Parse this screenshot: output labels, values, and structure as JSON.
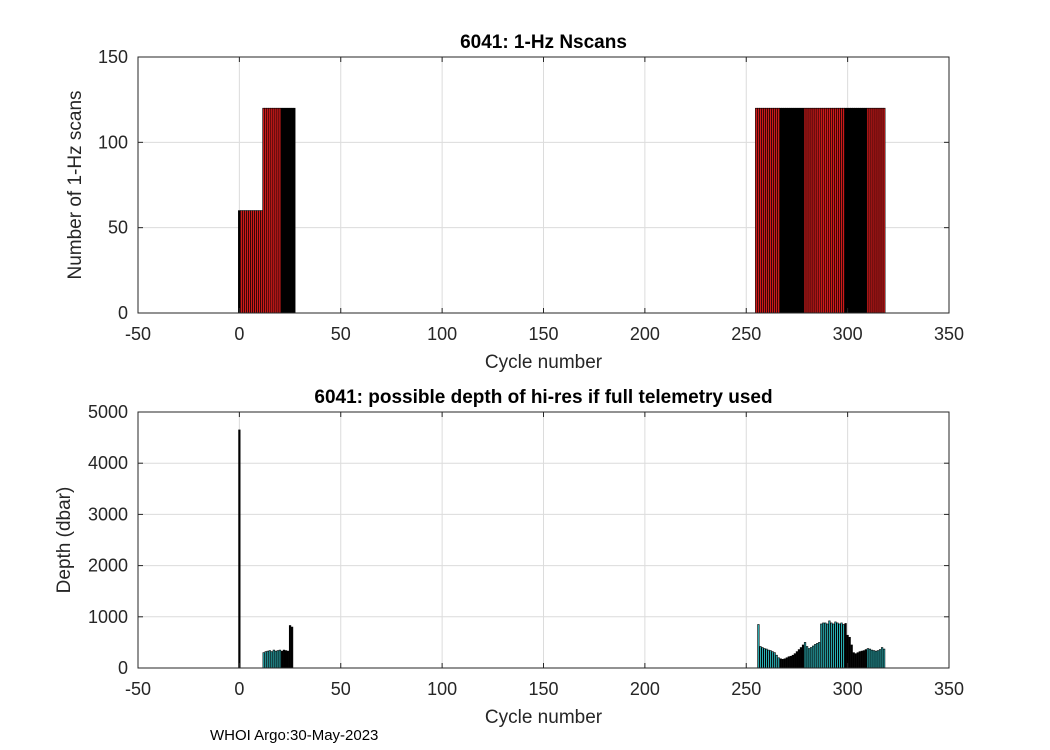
{
  "chart_data": [
    {
      "id": "nscans",
      "type": "bar",
      "title": "6041: 1-Hz Nscans",
      "xlabel": "Cycle number",
      "ylabel": "Number of 1-Hz scans",
      "xlim": [
        -50,
        350
      ],
      "ylim": [
        0,
        150
      ],
      "xticks": [
        -50,
        0,
        50,
        100,
        150,
        200,
        250,
        300,
        350
      ],
      "yticks": [
        0,
        50,
        100,
        150
      ],
      "grid": true,
      "bar_width": 1.0,
      "colors": {
        "fill": "#cc1a1a",
        "edge": "#000000"
      },
      "segments": [
        {
          "from": 0,
          "to": 11,
          "value": 60
        },
        {
          "from": 12,
          "to": 27,
          "value": 120
        },
        {
          "from": 255,
          "to": 318,
          "value": 120
        }
      ],
      "solid_ranges": [
        [
          0,
          0
        ],
        [
          21,
          27
        ],
        [
          267,
          278
        ],
        [
          299,
          309
        ]
      ]
    },
    {
      "id": "depth",
      "type": "bar",
      "title": "6041: possible depth of hi-res if full telemetry used",
      "xlabel": "Cycle number",
      "ylabel": "Depth (dbar)",
      "xlim": [
        -50,
        350
      ],
      "ylim": [
        0,
        5000
      ],
      "xticks": [
        -50,
        0,
        50,
        100,
        150,
        200,
        250,
        300,
        350
      ],
      "yticks": [
        0,
        1000,
        2000,
        3000,
        4000,
        5000
      ],
      "grid": true,
      "bar_width": 0.8,
      "colors": {
        "fill": "#2ab4b8",
        "edge": "#000000"
      },
      "x": [
        0,
        12,
        13,
        14,
        15,
        16,
        17,
        18,
        19,
        20,
        21,
        22,
        23,
        24,
        25,
        26,
        256,
        257,
        258,
        259,
        260,
        261,
        262,
        263,
        264,
        265,
        266,
        267,
        268,
        269,
        270,
        271,
        272,
        273,
        274,
        275,
        276,
        277,
        278,
        279,
        280,
        281,
        282,
        283,
        284,
        285,
        286,
        287,
        288,
        289,
        290,
        291,
        292,
        293,
        294,
        295,
        296,
        297,
        298,
        299,
        300,
        301,
        302,
        303,
        304,
        305,
        306,
        307,
        308,
        309,
        310,
        311,
        312,
        313,
        314,
        315,
        316,
        317,
        318
      ],
      "values": [
        4650,
        300,
        320,
        330,
        340,
        320,
        350,
        330,
        340,
        350,
        330,
        350,
        340,
        330,
        830,
        800,
        850,
        420,
        400,
        380,
        370,
        350,
        340,
        320,
        300,
        250,
        200,
        180,
        170,
        180,
        200,
        220,
        230,
        250,
        280,
        320,
        360,
        400,
        450,
        500,
        420,
        380,
        400,
        430,
        460,
        480,
        500,
        860,
        880,
        880,
        860,
        920,
        880,
        860,
        900,
        880,
        860,
        880,
        850,
        870,
        640,
        600,
        450,
        300,
        280,
        300,
        320,
        330,
        340,
        360,
        380,
        370,
        350,
        340,
        330,
        340,
        360,
        400,
        370
      ],
      "solid_ranges": [
        [
          0,
          0
        ],
        [
          21,
          27
        ],
        [
          267,
          278
        ],
        [
          299,
          309
        ]
      ]
    }
  ],
  "footer": "WHOI Argo:30-May-2023"
}
